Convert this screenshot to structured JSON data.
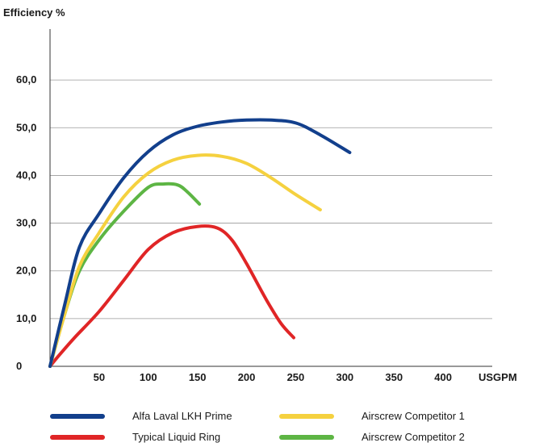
{
  "chart_data": {
    "type": "line",
    "ylabel": "Efficiency %",
    "xlabel": "USGPM",
    "xlim": [
      0,
      450
    ],
    "ylim": [
      0,
      70
    ],
    "y_ticks": [
      {
        "value": 0,
        "label": "0"
      },
      {
        "value": 10,
        "label": "10,0"
      },
      {
        "value": 20,
        "label": "20,0"
      },
      {
        "value": 30,
        "label": "30,0"
      },
      {
        "value": 40,
        "label": "40,0"
      },
      {
        "value": 50,
        "label": "50,0"
      },
      {
        "value": 60,
        "label": "60,0"
      }
    ],
    "x_ticks": [
      {
        "value": 50,
        "label": "50"
      },
      {
        "value": 100,
        "label": "100"
      },
      {
        "value": 150,
        "label": "150"
      },
      {
        "value": 200,
        "label": "200"
      },
      {
        "value": 250,
        "label": "250"
      },
      {
        "value": 300,
        "label": "300"
      },
      {
        "value": 350,
        "label": "350"
      },
      {
        "value": 400,
        "label": "400"
      }
    ],
    "grid": "horizontal",
    "legend_position": "bottom",
    "series": [
      {
        "name": "Alfa Laval LKH Prime",
        "color": "#123f8c",
        "x": [
          0,
          15,
          30,
          50,
          75,
          100,
          125,
          150,
          175,
          200,
          225,
          250,
          275,
          305
        ],
        "y": [
          0,
          13,
          25,
          32,
          39.5,
          45,
          48.5,
          50.3,
          51.2,
          51.6,
          51.6,
          51,
          48.5,
          44.8
        ]
      },
      {
        "name": "Airscrew Competitor 1",
        "color": "#f5d13f",
        "x": [
          0,
          15,
          30,
          50,
          75,
          100,
          125,
          150,
          175,
          200,
          225,
          250,
          275
        ],
        "y": [
          0,
          11,
          21,
          28,
          35.5,
          40.5,
          43.2,
          44.2,
          44,
          42.5,
          39.5,
          36,
          32.8
        ]
      },
      {
        "name": "Typical Liquid Ring",
        "color": "#e02526",
        "x": [
          0,
          10,
          25,
          50,
          75,
          100,
          125,
          150,
          170,
          185,
          200,
          220,
          235,
          248
        ],
        "y": [
          0,
          2.5,
          6,
          11.5,
          18,
          24.5,
          28,
          29.3,
          29,
          26.5,
          21.5,
          14,
          9,
          6
        ]
      },
      {
        "name": "Airscrew Competitor 2",
        "color": "#5db544",
        "x": [
          0,
          15,
          30,
          50,
          75,
          100,
          115,
          130,
          140,
          152
        ],
        "y": [
          0,
          11,
          20,
          26.5,
          32.5,
          37.5,
          38.2,
          38,
          36.5,
          34
        ]
      }
    ]
  },
  "legend": [
    {
      "label": "Alfa Laval LKH Prime",
      "color": "#123f8c"
    },
    {
      "label": "Airscrew Competitor 1",
      "color": "#f5d13f"
    },
    {
      "label": "Typical Liquid Ring",
      "color": "#e02526"
    },
    {
      "label": "Airscrew Competitor 2",
      "color": "#5db544"
    }
  ]
}
